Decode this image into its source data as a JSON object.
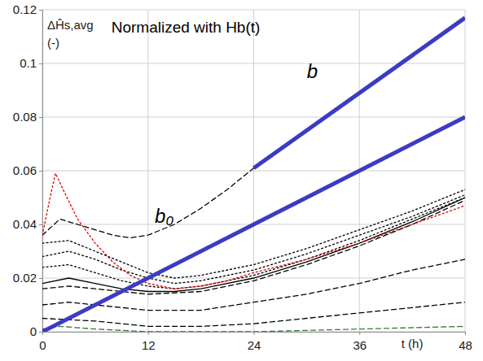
{
  "chart_data": {
    "type": "line",
    "title": "Normalized with Hb(t)",
    "y_label": "ΔĤs,avg",
    "y_unit": "(-)",
    "x_label": "t (h)",
    "xlim": [
      0,
      48
    ],
    "xticks": [
      0,
      12,
      24,
      36,
      48
    ],
    "ylim": [
      0,
      0.12
    ],
    "yticks": [
      0,
      0.02,
      0.04,
      0.06,
      0.08,
      0.1,
      0.12
    ],
    "grid": true,
    "series": [
      {
        "color": "#000000",
        "line_style": "dashed",
        "x": [
          0,
          2,
          4,
          6,
          8,
          10,
          12,
          15,
          18,
          21,
          24,
          27
        ],
        "values": [
          0.036,
          0.042,
          0.04,
          0.038,
          0.036,
          0.035,
          0.036,
          0.04,
          0.046,
          0.053,
          0.061,
          0.068
        ]
      },
      {
        "color": "#000000",
        "line_style": "dotted",
        "x": [
          0,
          3,
          6,
          9,
          12,
          15,
          18,
          24,
          30,
          36,
          42,
          48
        ],
        "values": [
          0.033,
          0.034,
          0.03,
          0.026,
          0.022,
          0.02,
          0.021,
          0.025,
          0.031,
          0.038,
          0.045,
          0.053
        ]
      },
      {
        "color": "#000000",
        "line_style": "dotted",
        "x": [
          0,
          3,
          6,
          9,
          12,
          15,
          18,
          24,
          30,
          36,
          42,
          48
        ],
        "values": [
          0.028,
          0.03,
          0.027,
          0.023,
          0.02,
          0.018,
          0.019,
          0.023,
          0.029,
          0.036,
          0.043,
          0.051
        ]
      },
      {
        "color": "#000000",
        "line_style": "dotted",
        "x": [
          0,
          3,
          6,
          9,
          12,
          15,
          18,
          24,
          30,
          36,
          42,
          48
        ],
        "values": [
          0.024,
          0.025,
          0.022,
          0.019,
          0.017,
          0.016,
          0.017,
          0.021,
          0.027,
          0.034,
          0.042,
          0.05
        ]
      },
      {
        "color": "#000000",
        "line_style": "solid",
        "x": [
          0,
          3,
          6,
          9,
          12,
          15,
          18,
          24,
          30,
          36,
          42,
          48
        ],
        "values": [
          0.018,
          0.02,
          0.018,
          0.016,
          0.015,
          0.015,
          0.016,
          0.02,
          0.026,
          0.033,
          0.041,
          0.05
        ]
      },
      {
        "color": "#000000",
        "line_style": "dashed",
        "x": [
          0,
          3,
          6,
          9,
          12,
          18,
          24,
          30,
          36,
          42,
          48
        ],
        "values": [
          0.016,
          0.017,
          0.016,
          0.015,
          0.014,
          0.015,
          0.019,
          0.025,
          0.032,
          0.04,
          0.049
        ]
      },
      {
        "color": "#e00000",
        "line_style": "dotted",
        "x": [
          0,
          1,
          1.5,
          2.5,
          4,
          6,
          8,
          10,
          12,
          15,
          18,
          21,
          24,
          30,
          36,
          42,
          48
        ],
        "values": [
          0.036,
          0.052,
          0.059,
          0.052,
          0.042,
          0.033,
          0.026,
          0.021,
          0.018,
          0.016,
          0.017,
          0.019,
          0.022,
          0.027,
          0.033,
          0.04,
          0.047
        ]
      },
      {
        "color": "#000000",
        "line_style": "dashed",
        "x": [
          0,
          3,
          6,
          12,
          18,
          24,
          30,
          36,
          42,
          48
        ],
        "values": [
          0.01,
          0.011,
          0.01,
          0.008,
          0.008,
          0.011,
          0.014,
          0.018,
          0.023,
          0.027
        ]
      },
      {
        "color": "#000000",
        "line_style": "dashed",
        "x": [
          0,
          6,
          12,
          18,
          24,
          30,
          36,
          42,
          48
        ],
        "values": [
          0.005,
          0.004,
          0.002,
          0.002,
          0.003,
          0.005,
          0.007,
          0.009,
          0.011
        ]
      },
      {
        "color": "#3a7a3a",
        "line_style": "dashed",
        "x": [
          0,
          2,
          6,
          12,
          24,
          36,
          48
        ],
        "values": [
          0.001,
          0.002,
          0.001,
          0,
          0,
          0.001,
          0.002
        ]
      },
      {
        "name": "b",
        "color": "#3b3bc4",
        "line_style": "solid",
        "x": [
          24,
          48
        ],
        "values": [
          0.061,
          0.117
        ]
      },
      {
        "name": "b₀",
        "color": "#3b3bc4",
        "line_style": "solid",
        "x": [
          0,
          48
        ],
        "values": [
          0,
          0.08
        ]
      }
    ]
  }
}
